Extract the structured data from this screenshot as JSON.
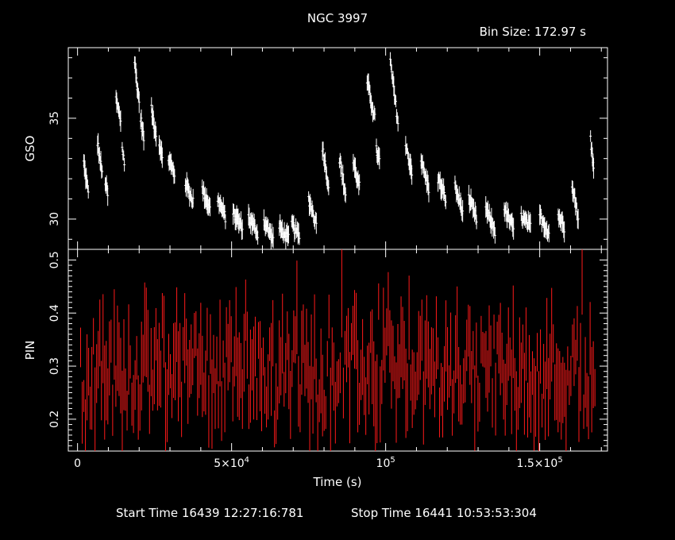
{
  "chart_data": [
    {
      "type": "line",
      "panel": "top",
      "title": "NGC 3997",
      "bin_label": "Bin Size:  172.97 s",
      "ylabel": "GSO",
      "xlim": [
        -3000,
        172000
      ],
      "ylim": [
        28.5,
        38.5
      ],
      "yticks": [
        30,
        35
      ],
      "ytick_labels": [
        "30",
        "35"
      ],
      "color": "#ffffff",
      "segments": [
        {
          "x0": 2000,
          "x1": 3500,
          "y0": 32.8,
          "y1": 31.3,
          "n": 8
        },
        {
          "x0": 6500,
          "x1": 8000,
          "y0": 33.8,
          "y1": 32.2,
          "n": 8
        },
        {
          "x0": 9000,
          "x1": 9800,
          "y0": 31.9,
          "y1": 31.2,
          "n": 5
        },
        {
          "x0": 12500,
          "x1": 14000,
          "y0": 35.9,
          "y1": 34.9,
          "n": 8
        },
        {
          "x0": 14500,
          "x1": 15200,
          "y0": 33.6,
          "y1": 32.8,
          "n": 4
        },
        {
          "x0": 18500,
          "x1": 20000,
          "y0": 37.8,
          "y1": 35.8,
          "n": 8
        },
        {
          "x0": 20500,
          "x1": 21500,
          "y0": 35.0,
          "y1": 34.0,
          "n": 6
        },
        {
          "x0": 24000,
          "x1": 25500,
          "y0": 35.4,
          "y1": 34.2,
          "n": 8
        },
        {
          "x0": 26500,
          "x1": 27500,
          "y0": 33.8,
          "y1": 33.0,
          "n": 6
        },
        {
          "x0": 29500,
          "x1": 31500,
          "y0": 33.0,
          "y1": 32.2,
          "n": 10
        },
        {
          "x0": 35000,
          "x1": 37500,
          "y0": 31.8,
          "y1": 30.9,
          "n": 12
        },
        {
          "x0": 40500,
          "x1": 43000,
          "y0": 31.5,
          "y1": 30.5,
          "n": 12
        },
        {
          "x0": 45500,
          "x1": 48000,
          "y0": 31.0,
          "y1": 30.1,
          "n": 12
        },
        {
          "x0": 50500,
          "x1": 53500,
          "y0": 30.3,
          "y1": 29.6,
          "n": 14
        },
        {
          "x0": 55500,
          "x1": 58500,
          "y0": 30.1,
          "y1": 29.3,
          "n": 14
        },
        {
          "x0": 60500,
          "x1": 63500,
          "y0": 29.9,
          "y1": 29.0,
          "n": 14
        },
        {
          "x0": 65500,
          "x1": 68500,
          "y0": 29.6,
          "y1": 29.0,
          "n": 14
        },
        {
          "x0": 69500,
          "x1": 72000,
          "y0": 29.8,
          "y1": 29.1,
          "n": 12
        },
        {
          "x0": 75000,
          "x1": 77500,
          "y0": 31.0,
          "y1": 29.8,
          "n": 12
        },
        {
          "x0": 79500,
          "x1": 81500,
          "y0": 33.6,
          "y1": 31.6,
          "n": 10
        },
        {
          "x0": 85000,
          "x1": 87000,
          "y0": 33.0,
          "y1": 31.2,
          "n": 10
        },
        {
          "x0": 89500,
          "x1": 91500,
          "y0": 32.8,
          "y1": 31.6,
          "n": 10
        },
        {
          "x0": 94000,
          "x1": 96500,
          "y0": 36.8,
          "y1": 35.0,
          "n": 12
        },
        {
          "x0": 97000,
          "x1": 98000,
          "y0": 33.4,
          "y1": 32.9,
          "n": 6
        },
        {
          "x0": 101500,
          "x1": 104000,
          "y0": 37.8,
          "y1": 34.8,
          "n": 12
        },
        {
          "x0": 106500,
          "x1": 108500,
          "y0": 33.6,
          "y1": 32.4,
          "n": 10
        },
        {
          "x0": 111500,
          "x1": 114000,
          "y0": 32.9,
          "y1": 31.5,
          "n": 12
        },
        {
          "x0": 117000,
          "x1": 119500,
          "y0": 32.0,
          "y1": 31.0,
          "n": 12
        },
        {
          "x0": 122500,
          "x1": 125000,
          "y0": 31.6,
          "y1": 30.4,
          "n": 12
        },
        {
          "x0": 127000,
          "x1": 129500,
          "y0": 31.0,
          "y1": 30.0,
          "n": 12
        },
        {
          "x0": 132500,
          "x1": 135500,
          "y0": 30.5,
          "y1": 29.4,
          "n": 14
        },
        {
          "x0": 138500,
          "x1": 141500,
          "y0": 30.5,
          "y1": 29.5,
          "n": 14
        },
        {
          "x0": 144000,
          "x1": 147000,
          "y0": 30.1,
          "y1": 29.6,
          "n": 14
        },
        {
          "x0": 150000,
          "x1": 153000,
          "y0": 30.2,
          "y1": 29.3,
          "n": 14
        },
        {
          "x0": 156000,
          "x1": 158000,
          "y0": 30.2,
          "y1": 29.6,
          "n": 10
        },
        {
          "x0": 160500,
          "x1": 162500,
          "y0": 31.8,
          "y1": 30.0,
          "n": 10
        },
        {
          "x0": 166500,
          "x1": 167500,
          "y0": 34.0,
          "y1": 32.4,
          "n": 6
        }
      ]
    },
    {
      "type": "line",
      "panel": "bottom",
      "xlabel": "Time (s)",
      "ylabel": "PIN",
      "xlim": [
        -3000,
        172000
      ],
      "ylim": [
        0.14,
        0.52
      ],
      "yticks": [
        0.2,
        0.3,
        0.4,
        0.5
      ],
      "ytick_labels": [
        "0.2",
        "0.3",
        "0.4",
        "0.5"
      ],
      "xticks": [
        0,
        50000,
        100000,
        150000
      ],
      "xtick_labels": [
        {
          "base": "0"
        },
        {
          "base": "5×10",
          "sup": "4"
        },
        {
          "base": "10",
          "sup": "5"
        },
        {
          "base": "1.5×10",
          "sup": "5"
        }
      ],
      "color": "#ff1a1a",
      "mean": 0.29,
      "error_typical": 0.05,
      "x_range_data": [
        1000,
        168000
      ]
    }
  ],
  "footer": {
    "start_label": "Start Time 16439 12:27:16:781",
    "stop_label": "Stop Time 16441 10:53:53:304"
  }
}
